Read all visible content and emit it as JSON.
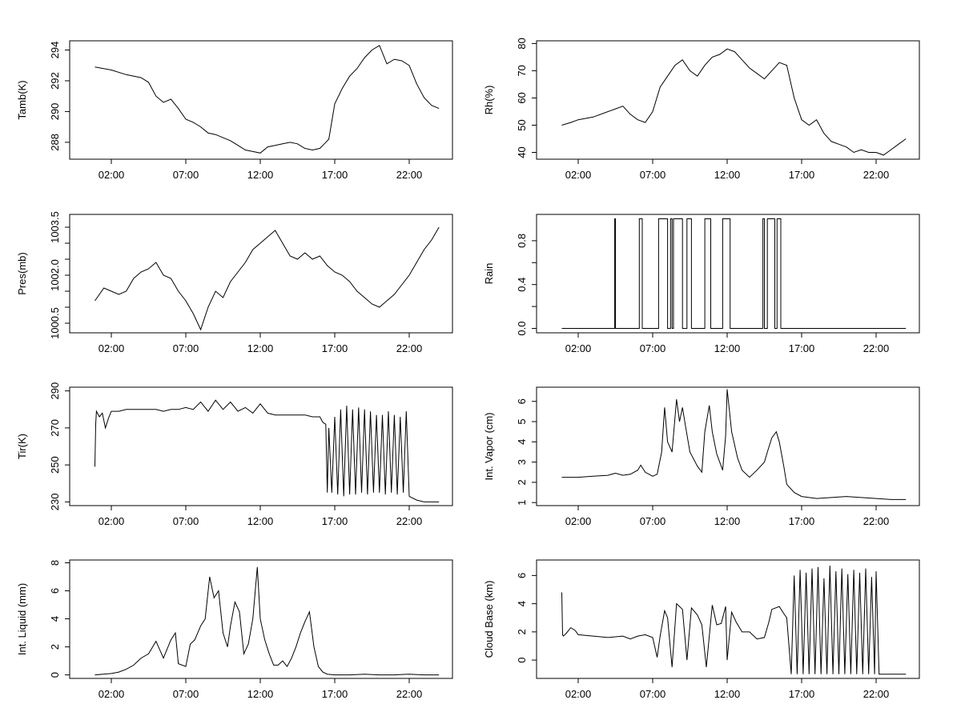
{
  "x_axis": {
    "tick_labels": [
      "02:00",
      "07:00",
      "12:00",
      "17:00",
      "22:00"
    ],
    "tick_hours": [
      2,
      7,
      12,
      17,
      22
    ],
    "data_start_hour": 0.9,
    "data_end_hour": 24.0
  },
  "line_color": "#000000",
  "chart_data": [
    {
      "type": "line",
      "ylabel": "Tamb(K)",
      "yticks": [
        288,
        290,
        292,
        294
      ],
      "ylim": [
        286.9,
        294.6
      ],
      "x": [
        0.9,
        2,
        3,
        4,
        4.5,
        5,
        5.5,
        6,
        6.5,
        7,
        7.5,
        8,
        8.5,
        9,
        9.5,
        10,
        10.5,
        11,
        11.5,
        12,
        12.5,
        13,
        13.5,
        14,
        14.5,
        15,
        15.5,
        16,
        16.3,
        16.6,
        17,
        17.5,
        18,
        18.5,
        19,
        19.5,
        20,
        20.5,
        21,
        21.5,
        22,
        22.5,
        23,
        23.5,
        24
      ],
      "values": [
        292.9,
        292.7,
        292.4,
        292.2,
        291.9,
        291.0,
        290.6,
        290.8,
        290.2,
        289.5,
        289.3,
        289.0,
        288.6,
        288.5,
        288.3,
        288.1,
        287.8,
        287.5,
        287.4,
        287.3,
        287.7,
        287.8,
        287.9,
        288.0,
        287.9,
        287.6,
        287.5,
        287.6,
        287.9,
        288.2,
        290.5,
        291.5,
        292.3,
        292.8,
        293.5,
        294.0,
        294.3,
        293.1,
        293.4,
        293.3,
        293.0,
        291.8,
        290.9,
        290.4,
        290.2
      ]
    },
    {
      "type": "line",
      "ylabel": "Rh(%)",
      "yticks": [
        40,
        50,
        60,
        70,
        80
      ],
      "ylim": [
        37.5,
        81
      ],
      "x": [
        0.9,
        1.5,
        2,
        3,
        4,
        4.5,
        5,
        5.5,
        6,
        6.5,
        7,
        7.5,
        8,
        8.5,
        9,
        9.5,
        10,
        10.5,
        11,
        11.5,
        12,
        12.5,
        13,
        13.5,
        14,
        14.5,
        15,
        15.5,
        16,
        16.5,
        17,
        17.5,
        18,
        18.5,
        19,
        19.5,
        20,
        20.5,
        21,
        21.5,
        22,
        22.5,
        23,
        23.5,
        24
      ],
      "values": [
        50,
        51,
        52,
        53,
        55,
        56,
        57,
        54,
        52,
        51,
        55,
        64,
        68,
        72,
        74,
        70,
        68,
        72,
        75,
        76,
        78,
        77,
        74,
        71,
        69,
        67,
        70,
        73,
        72,
        60,
        52,
        50,
        52,
        47,
        44,
        43,
        42,
        40,
        41,
        40,
        40,
        39,
        41,
        43,
        45
      ]
    },
    {
      "type": "line",
      "ylabel": "Pres(mb)",
      "yticks": [
        1000.5,
        1002.0,
        1003.5
      ],
      "minor_yticks": [
        1001.0,
        1001.5,
        1002.5,
        1003.0
      ],
      "ytick_labels": [
        "1000.5",
        "1002.0",
        "1003.5"
      ],
      "ylim": [
        1000.2,
        1003.9
      ],
      "x": [
        0.9,
        1.5,
        2,
        2.5,
        3,
        3.5,
        4,
        4.5,
        5,
        5.5,
        6,
        6.5,
        7,
        7.5,
        8,
        8.5,
        9,
        9.5,
        10,
        10.5,
        11,
        11.5,
        12,
        12.5,
        13,
        13.5,
        14,
        14.5,
        15,
        15.5,
        16,
        16.5,
        17,
        17.5,
        18,
        18.5,
        19,
        19.5,
        20,
        20.5,
        21,
        21.5,
        22,
        22.5,
        23,
        23.5,
        24
      ],
      "values": [
        1001.2,
        1001.6,
        1001.5,
        1001.4,
        1001.5,
        1001.9,
        1002.1,
        1002.2,
        1002.4,
        1002.0,
        1001.9,
        1001.5,
        1001.2,
        1000.8,
        1000.3,
        1001.0,
        1001.5,
        1001.3,
        1001.8,
        1002.1,
        1002.4,
        1002.8,
        1003.0,
        1003.2,
        1003.4,
        1003.0,
        1002.6,
        1002.5,
        1002.7,
        1002.5,
        1002.6,
        1002.3,
        1002.1,
        1002.0,
        1001.8,
        1001.5,
        1001.3,
        1001.1,
        1001.0,
        1001.2,
        1001.4,
        1001.7,
        1002.0,
        1002.4,
        1002.8,
        1003.1,
        1003.5
      ]
    },
    {
      "type": "line",
      "ylabel": "Rain",
      "yticks": [
        0.0,
        0.4,
        0.8
      ],
      "minor_yticks": [
        0.2,
        0.6
      ],
      "ytick_labels": [
        "0.0",
        "0.4",
        "0.8"
      ],
      "ylim": [
        -0.04,
        1.04
      ],
      "rain_intervals": [
        [
          4.45,
          4.5
        ],
        [
          6.1,
          6.3
        ],
        [
          7.4,
          8.0
        ],
        [
          8.2,
          8.3
        ],
        [
          8.4,
          9.0
        ],
        [
          9.3,
          9.6
        ],
        [
          10.5,
          10.9
        ],
        [
          11.7,
          12.2
        ],
        [
          14.4,
          14.5
        ],
        [
          14.7,
          15.2
        ],
        [
          15.35,
          15.6
        ]
      ]
    },
    {
      "type": "line",
      "ylabel": "Tir(K)",
      "yticks": [
        230,
        250,
        270,
        290
      ],
      "ylim": [
        228,
        292
      ],
      "x": [
        0.9,
        0.95,
        1,
        1.2,
        1.4,
        1.6,
        1.8,
        2,
        2.5,
        3,
        4,
        5,
        5.5,
        6,
        6.5,
        7,
        7.5,
        8,
        8.5,
        9,
        9.5,
        10,
        10.5,
        11,
        11.5,
        12,
        12.5,
        13,
        13.5,
        14,
        14.5,
        15,
        15.5,
        16,
        16.2,
        16.4,
        16.5,
        16.6,
        16.8,
        17,
        17.2,
        17.4,
        17.6,
        17.8,
        18,
        18.2,
        18.4,
        18.6,
        18.8,
        19,
        19.2,
        19.4,
        19.6,
        19.8,
        20,
        20.2,
        20.4,
        20.6,
        20.8,
        21,
        21.2,
        21.4,
        21.6,
        21.8,
        22,
        22.5,
        23,
        23.5,
        24
      ],
      "values": [
        249,
        272,
        279,
        276,
        278,
        270,
        275,
        279,
        279,
        280,
        280,
        280,
        279,
        280,
        280,
        281,
        280,
        284,
        279,
        285,
        280,
        284,
        279,
        281,
        278,
        283,
        278,
        277,
        277,
        277,
        277,
        277,
        276,
        276,
        273,
        272,
        235,
        270,
        235,
        276,
        234,
        280,
        233,
        282,
        234,
        280,
        234,
        281,
        235,
        280,
        234,
        279,
        235,
        277,
        235,
        277,
        234,
        279,
        235,
        277,
        234,
        276,
        235,
        279,
        233,
        231,
        230,
        230,
        230
      ]
    },
    {
      "type": "line",
      "ylabel": "Int. Vapor (cm)",
      "yticks": [
        1,
        2,
        3,
        4,
        5,
        6
      ],
      "ylim": [
        0.85,
        6.7
      ],
      "x": [
        0.9,
        2,
        3,
        4,
        4.5,
        5,
        5.5,
        6,
        6.2,
        6.5,
        7,
        7.3,
        7.6,
        7.8,
        8,
        8.3,
        8.6,
        8.8,
        9,
        9.2,
        9.5,
        10,
        10.3,
        10.5,
        10.8,
        11,
        11.3,
        11.7,
        11.9,
        12,
        12.3,
        12.7,
        13,
        13.5,
        14,
        14.5,
        14.7,
        15,
        15.3,
        15.5,
        15.8,
        16,
        16.5,
        17,
        18,
        19,
        20,
        21,
        22,
        23,
        24
      ],
      "values": [
        2.25,
        2.25,
        2.3,
        2.35,
        2.45,
        2.35,
        2.4,
        2.6,
        2.85,
        2.5,
        2.3,
        2.4,
        3.5,
        5.7,
        4.0,
        3.5,
        6.1,
        5.0,
        5.7,
        4.8,
        3.5,
        2.8,
        2.5,
        4.5,
        5.8,
        4.5,
        3.4,
        2.6,
        4.3,
        6.6,
        4.5,
        3.2,
        2.6,
        2.25,
        2.6,
        3.0,
        3.5,
        4.2,
        4.5,
        4.0,
        2.8,
        1.9,
        1.5,
        1.3,
        1.2,
        1.25,
        1.3,
        1.25,
        1.2,
        1.15,
        1.15
      ]
    },
    {
      "type": "line",
      "ylabel": "Int. Liquid (mm)",
      "yticks": [
        0,
        2,
        4,
        6,
        8
      ],
      "ylim": [
        -0.25,
        8.2
      ],
      "x": [
        0.9,
        2,
        2.5,
        3,
        3.5,
        4,
        4.5,
        5,
        5.5,
        6,
        6.3,
        6.5,
        7,
        7.3,
        7.6,
        8,
        8.3,
        8.6,
        8.9,
        9.2,
        9.5,
        9.8,
        10,
        10.3,
        10.6,
        10.9,
        11.2,
        11.5,
        11.8,
        12,
        12.3,
        12.6,
        12.9,
        13.2,
        13.5,
        13.8,
        14.1,
        14.4,
        14.7,
        15,
        15.3,
        15.6,
        15.9,
        16.2,
        16.5,
        17,
        18,
        19,
        20,
        21,
        22,
        23,
        24
      ],
      "values": [
        0,
        0.1,
        0.2,
        0.4,
        0.7,
        1.2,
        1.5,
        2.4,
        1.2,
        2.5,
        3.0,
        0.8,
        0.6,
        2.2,
        2.5,
        3.5,
        4.0,
        7.0,
        5.5,
        6.0,
        3.0,
        2.0,
        3.5,
        5.2,
        4.5,
        1.5,
        2.2,
        4.0,
        7.7,
        4.0,
        2.5,
        1.5,
        0.7,
        0.7,
        1.0,
        0.6,
        1.2,
        2.0,
        3.0,
        3.8,
        4.5,
        2.0,
        0.6,
        0.2,
        0.05,
        0,
        0,
        0.05,
        0,
        0,
        0.05,
        0,
        0
      ]
    },
    {
      "type": "line",
      "ylabel": "Cloud Base (km)",
      "yticks": [
        0,
        2,
        4,
        6
      ],
      "ylim": [
        -1.3,
        7.1
      ],
      "x": [
        0.9,
        0.95,
        1.0,
        1.2,
        1.5,
        1.8,
        2,
        3,
        4,
        5,
        5.5,
        6,
        6.5,
        7,
        7.3,
        7.5,
        7.8,
        8,
        8.3,
        8.6,
        9,
        9.3,
        9.6,
        10,
        10.3,
        10.6,
        11,
        11.3,
        11.6,
        11.9,
        12,
        12.3,
        12.6,
        13,
        13.5,
        14,
        14.5,
        14.8,
        15,
        15.5,
        15.8,
        16,
        16.3,
        16.5,
        16.7,
        16.9,
        17.1,
        17.3,
        17.5,
        17.7,
        17.9,
        18.1,
        18.3,
        18.5,
        18.7,
        18.9,
        19.1,
        19.3,
        19.5,
        19.7,
        19.9,
        20.1,
        20.3,
        20.5,
        20.7,
        20.9,
        21.1,
        21.3,
        21.5,
        21.7,
        21.9,
        22.0,
        22.2,
        23,
        24
      ],
      "values": [
        4.8,
        1.8,
        1.7,
        1.9,
        2.3,
        2.1,
        1.8,
        1.7,
        1.6,
        1.7,
        1.5,
        1.7,
        1.8,
        1.6,
        0.2,
        1.7,
        3.5,
        3.0,
        -0.5,
        4.0,
        3.6,
        0.0,
        3.7,
        3.2,
        2.5,
        -0.5,
        3.9,
        2.5,
        2.6,
        3.8,
        0.0,
        3.4,
        2.7,
        2.0,
        2.0,
        1.5,
        1.6,
        2.7,
        3.6,
        3.8,
        3.3,
        3.0,
        -1.0,
        6.0,
        -1.0,
        6.4,
        -1.0,
        6.2,
        -1.0,
        6.5,
        -1.0,
        6.6,
        -1.0,
        5.8,
        -1.0,
        6.7,
        -1.0,
        6.3,
        -1.0,
        6.5,
        -1.0,
        6.1,
        -1.0,
        6.4,
        -1.0,
        6.2,
        -1.0,
        6.5,
        -1.0,
        5.9,
        -1.0,
        6.3,
        -1.0,
        -1.0,
        -1.0
      ]
    }
  ]
}
